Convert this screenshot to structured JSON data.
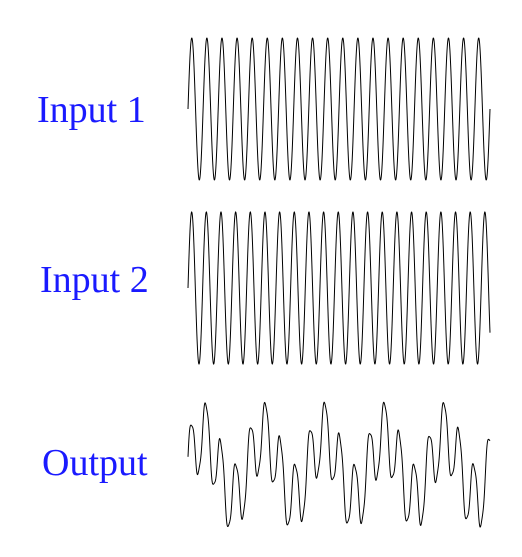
{
  "colors": {
    "label": "#1a1aff",
    "line": "#000000",
    "background": "#ffffff"
  },
  "signals": [
    {
      "label": "Input 1",
      "cycles": 20,
      "modulation": 0,
      "mod_cycles": 0
    },
    {
      "label": "Input 2",
      "cycles": 20.6,
      "modulation": 0,
      "mod_cycles": 0
    },
    {
      "label": "Output",
      "cycles": 20.3,
      "modulation": 1,
      "mod_cycles": 5
    }
  ]
}
